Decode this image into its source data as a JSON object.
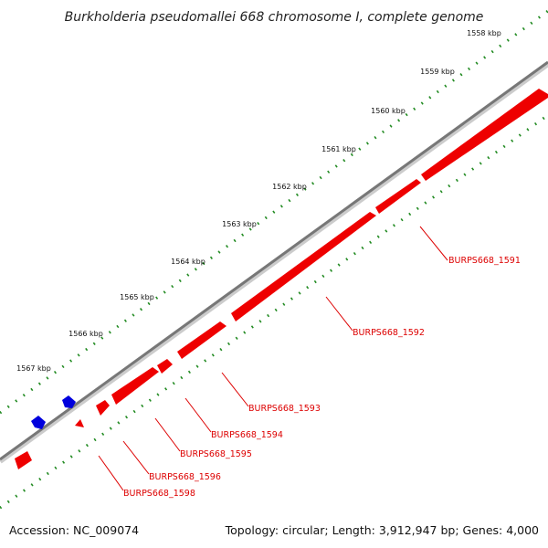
{
  "title": "Burkholderia pseudomallei 668 chromosome I, complete genome",
  "tick_labels": [
    "1558 kbp",
    "1559 kbp",
    "1560 kbp",
    "1561 kbp",
    "1562 kbp",
    "1563 kbp",
    "1564 kbp",
    "1565 kbp",
    "1566 kbp",
    "1567 kbp"
  ],
  "genes": [
    {
      "label": "BURPS668_1591",
      "strand": "forward"
    },
    {
      "label": "BURPS668_1592",
      "strand": "forward"
    },
    {
      "label": "BURPS668_1593",
      "strand": "forward"
    },
    {
      "label": "BURPS668_1594",
      "strand": "forward"
    },
    {
      "label": "BURPS668_1595",
      "strand": "forward"
    },
    {
      "label": "BURPS668_1596",
      "strand": "forward"
    },
    {
      "label": "BURPS668_1598",
      "strand": "forward"
    }
  ],
  "footer": {
    "accession": "Accession: NC_009074",
    "summary": "Topology: circular; Length: 3,912,947 bp; Genes: 4,000"
  },
  "colors": {
    "forward_gene": "#ee0000",
    "reverse_gene": "#0000dd",
    "backbone": "#777777",
    "gc_dots": "#228b22",
    "label_text": "#dd0000"
  }
}
